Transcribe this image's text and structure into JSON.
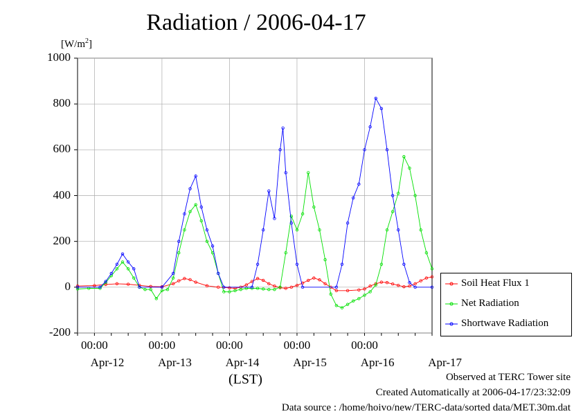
{
  "title": "Radiation / 2006-04-17",
  "unit_label": "[W/m",
  "unit_sup": "2",
  "unit_close": "]",
  "xlabel": "(LST)",
  "legend": [
    {
      "label": "Soil Heat Flux 1",
      "color": "#ff0000"
    },
    {
      "label": "Net Radiation",
      "color": "#00e000"
    },
    {
      "label": "Shortwave Radiation",
      "color": "#0000ff"
    }
  ],
  "footer": {
    "line1": "Observed at TERC Tower site",
    "line2": "Created Automatically at 2006-04-17/23:32:09",
    "line3": "Data source : /home/hoivo/new/TERC-data/sorted  data/MET.30m.dat"
  },
  "chart_data": {
    "type": "line",
    "x_unit": "hours since 2006-04-11 18:00 LST",
    "xlim": [
      0,
      126
    ],
    "ylim": [
      -200,
      1000
    ],
    "yticks": [
      "-200",
      "0",
      "200",
      "400",
      "600",
      "800",
      "1000"
    ],
    "midnight_labels": [
      "00:00",
      "00:00",
      "00:00",
      "00:00",
      "00:00"
    ],
    "day_labels": [
      "Apr-12",
      "Apr-13",
      "Apr-14",
      "Apr-15",
      "Apr-16",
      "Apr-17"
    ],
    "grid": true,
    "legend_position": "right-bottom",
    "series": [
      {
        "name": "Soil Heat Flux 1",
        "color": "#ff0000",
        "points": [
          [
            0,
            5
          ],
          [
            6,
            7
          ],
          [
            10,
            12
          ],
          [
            14,
            15
          ],
          [
            18,
            13
          ],
          [
            22,
            8
          ],
          [
            26,
            3
          ],
          [
            30,
            2
          ],
          [
            34,
            15
          ],
          [
            36,
            28
          ],
          [
            38,
            38
          ],
          [
            40,
            33
          ],
          [
            42,
            22
          ],
          [
            46,
            6
          ],
          [
            50,
            0
          ],
          [
            54,
            -3
          ],
          [
            56,
            -5
          ],
          [
            58,
            0
          ],
          [
            60,
            10
          ],
          [
            62,
            25
          ],
          [
            64,
            38
          ],
          [
            66,
            30
          ],
          [
            68,
            15
          ],
          [
            70,
            5
          ],
          [
            72,
            -2
          ],
          [
            74,
            -5
          ],
          [
            76,
            0
          ],
          [
            78,
            8
          ],
          [
            80,
            18
          ],
          [
            82,
            30
          ],
          [
            84,
            40
          ],
          [
            86,
            32
          ],
          [
            88,
            15
          ],
          [
            90,
            0
          ],
          [
            92,
            -15
          ],
          [
            96,
            -15
          ],
          [
            100,
            -12
          ],
          [
            102,
            -8
          ],
          [
            104,
            5
          ],
          [
            106,
            15
          ],
          [
            108,
            22
          ],
          [
            110,
            20
          ],
          [
            112,
            14
          ],
          [
            114,
            8
          ],
          [
            116,
            2
          ],
          [
            118,
            5
          ],
          [
            120,
            15
          ],
          [
            122,
            28
          ],
          [
            124,
            40
          ],
          [
            126,
            45
          ]
        ]
      },
      {
        "name": "Net Radiation",
        "color": "#00e000",
        "points": [
          [
            0,
            -8
          ],
          [
            4,
            -5
          ],
          [
            8,
            -5
          ],
          [
            10,
            20
          ],
          [
            12,
            50
          ],
          [
            14,
            80
          ],
          [
            16,
            110
          ],
          [
            18,
            80
          ],
          [
            20,
            40
          ],
          [
            22,
            0
          ],
          [
            24,
            -10
          ],
          [
            26,
            -10
          ],
          [
            28,
            -50
          ],
          [
            30,
            -15
          ],
          [
            32,
            -10
          ],
          [
            34,
            40
          ],
          [
            36,
            150
          ],
          [
            38,
            250
          ],
          [
            40,
            330
          ],
          [
            42,
            360
          ],
          [
            44,
            290
          ],
          [
            46,
            200
          ],
          [
            48,
            150
          ],
          [
            50,
            60
          ],
          [
            52,
            -20
          ],
          [
            54,
            -20
          ],
          [
            56,
            -15
          ],
          [
            58,
            -10
          ],
          [
            60,
            -5
          ],
          [
            62,
            -5
          ],
          [
            64,
            -5
          ],
          [
            66,
            -8
          ],
          [
            68,
            -10
          ],
          [
            70,
            -10
          ],
          [
            72,
            0
          ],
          [
            74,
            150
          ],
          [
            76,
            310
          ],
          [
            78,
            250
          ],
          [
            80,
            320
          ],
          [
            82,
            500
          ],
          [
            84,
            350
          ],
          [
            86,
            250
          ],
          [
            88,
            120
          ],
          [
            90,
            -30
          ],
          [
            92,
            -80
          ],
          [
            94,
            -90
          ],
          [
            96,
            -75
          ],
          [
            98,
            -60
          ],
          [
            100,
            -50
          ],
          [
            102,
            -35
          ],
          [
            104,
            -20
          ],
          [
            106,
            10
          ],
          [
            108,
            100
          ],
          [
            110,
            250
          ],
          [
            112,
            330
          ],
          [
            114,
            410
          ],
          [
            116,
            570
          ],
          [
            118,
            520
          ],
          [
            120,
            400
          ],
          [
            122,
            250
          ],
          [
            124,
            150
          ],
          [
            126,
            80
          ]
        ]
      },
      {
        "name": "Shortwave Radiation",
        "color": "#0000ff",
        "points": [
          [
            0,
            0
          ],
          [
            8,
            0
          ],
          [
            10,
            25
          ],
          [
            12,
            60
          ],
          [
            14,
            100
          ],
          [
            16,
            145
          ],
          [
            18,
            110
          ],
          [
            20,
            80
          ],
          [
            22,
            0
          ],
          [
            30,
            0
          ],
          [
            34,
            60
          ],
          [
            36,
            200
          ],
          [
            38,
            320
          ],
          [
            40,
            430
          ],
          [
            42,
            485
          ],
          [
            44,
            350
          ],
          [
            46,
            250
          ],
          [
            48,
            180
          ],
          [
            50,
            60
          ],
          [
            52,
            0
          ],
          [
            62,
            0
          ],
          [
            64,
            100
          ],
          [
            66,
            250
          ],
          [
            68,
            420
          ],
          [
            70,
            300
          ],
          [
            72,
            600
          ],
          [
            73,
            695
          ],
          [
            74,
            500
          ],
          [
            76,
            280
          ],
          [
            78,
            100
          ],
          [
            80,
            0
          ],
          [
            92,
            0
          ],
          [
            94,
            100
          ],
          [
            96,
            280
          ],
          [
            98,
            390
          ],
          [
            100,
            450
          ],
          [
            102,
            600
          ],
          [
            104,
            700
          ],
          [
            106,
            825
          ],
          [
            108,
            780
          ],
          [
            110,
            600
          ],
          [
            112,
            400
          ],
          [
            114,
            250
          ],
          [
            116,
            100
          ],
          [
            118,
            20
          ],
          [
            120,
            0
          ],
          [
            126,
            0
          ]
        ]
      }
    ]
  }
}
